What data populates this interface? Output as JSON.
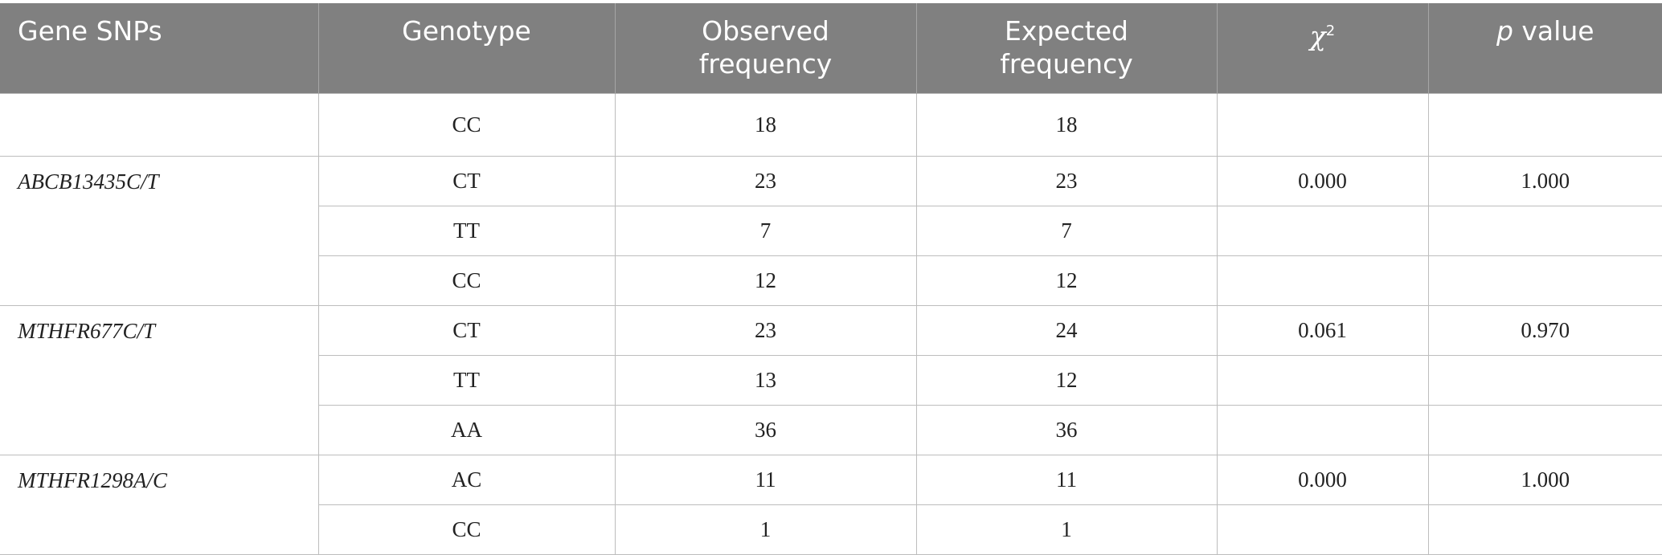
{
  "header": {
    "gene": "Gene SNPs",
    "genotype": "Genotype",
    "observed": "Observed frequency",
    "expected": "Expected frequency",
    "chi2": {
      "symbol": "χ",
      "superscript": "2"
    },
    "p": {
      "italic": "p",
      "text": "value"
    }
  },
  "table": {
    "groups": [
      {
        "rows": [
          {
            "genotype": "CC",
            "observed": 18,
            "expected": 18
          }
        ]
      },
      {
        "gene": "ABCB13435C/T",
        "rows": [
          {
            "genotype": "CT",
            "observed": 23,
            "expected": 23,
            "chi2": "0.000",
            "p": "1.000"
          },
          {
            "genotype": "TT",
            "observed": 7,
            "expected": 7
          },
          {
            "genotype": "CC",
            "observed": 12,
            "expected": 12
          }
        ]
      },
      {
        "gene": "MTHFR677C/T",
        "rows": [
          {
            "genotype": "CT",
            "observed": 23,
            "expected": 24,
            "chi2": "0.061",
            "p": "0.970"
          },
          {
            "genotype": "TT",
            "observed": 13,
            "expected": 12
          },
          {
            "genotype": "AA",
            "observed": 36,
            "expected": 36
          }
        ]
      },
      {
        "gene": "MTHFR1298A/C",
        "rows": [
          {
            "genotype": "AC",
            "observed": 11,
            "expected": 11,
            "chi2": "0.000",
            "p": "1.000"
          },
          {
            "genotype": "CC",
            "observed": 1,
            "expected": 1
          }
        ]
      }
    ]
  }
}
